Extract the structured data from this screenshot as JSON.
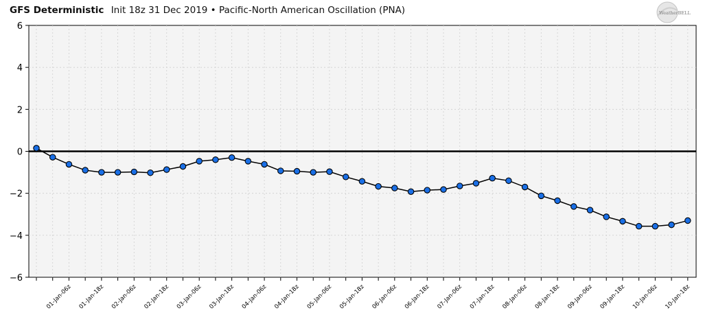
{
  "header": {
    "model": "GFS Deterministic",
    "init": "Init 18z 31 Dec 2019",
    "separator": "•",
    "index": "Pacific-North American Oscillation (PNA)"
  },
  "logo": {
    "text": "WeatherBELL"
  },
  "chart_data": {
    "type": "line",
    "title": "Pacific-North American Oscillation (PNA)",
    "xlabel": "",
    "ylabel": "",
    "ylim": [
      -6,
      6
    ],
    "yticks": [
      -6,
      -4,
      -2,
      0,
      2,
      4,
      6
    ],
    "ytick_labels": [
      "−6",
      "−4",
      "−2",
      "0",
      "2",
      "4",
      "6"
    ],
    "x": [
      "31-Dec-18z",
      "01-Jan-00z",
      "01-Jan-06z",
      "01-Jan-12z",
      "01-Jan-18z",
      "02-Jan-00z",
      "02-Jan-06z",
      "02-Jan-12z",
      "02-Jan-18z",
      "03-Jan-00z",
      "03-Jan-06z",
      "03-Jan-12z",
      "03-Jan-18z",
      "04-Jan-00z",
      "04-Jan-06z",
      "04-Jan-12z",
      "04-Jan-18z",
      "05-Jan-00z",
      "05-Jan-06z",
      "05-Jan-12z",
      "05-Jan-18z",
      "06-Jan-00z",
      "06-Jan-06z",
      "06-Jan-12z",
      "06-Jan-18z",
      "07-Jan-00z",
      "07-Jan-06z",
      "07-Jan-12z",
      "07-Jan-18z",
      "08-Jan-00z",
      "08-Jan-06z",
      "08-Jan-12z",
      "08-Jan-18z",
      "09-Jan-00z",
      "09-Jan-06z",
      "09-Jan-12z",
      "09-Jan-18z",
      "10-Jan-00z",
      "10-Jan-06z",
      "10-Jan-12z",
      "10-Jan-18z"
    ],
    "xtick_labels": [
      "01-Jan-06z",
      "01-Jan-18z",
      "02-Jan-06z",
      "02-Jan-18z",
      "03-Jan-06z",
      "03-Jan-18z",
      "04-Jan-06z",
      "04-Jan-18z",
      "05-Jan-06z",
      "05-Jan-18z",
      "06-Jan-06z",
      "06-Jan-18z",
      "07-Jan-06z",
      "07-Jan-18z",
      "08-Jan-06z",
      "08-Jan-18z",
      "09-Jan-06z",
      "09-Jan-18z",
      "10-Jan-06z",
      "10-Jan-18z"
    ],
    "series": [
      {
        "name": "PNA",
        "values": [
          0.15,
          -0.28,
          -0.62,
          -0.9,
          -1.0,
          -1.0,
          -0.98,
          -1.02,
          -0.87,
          -0.72,
          -0.47,
          -0.4,
          -0.3,
          -0.47,
          -0.62,
          -0.93,
          -0.95,
          -1.0,
          -0.97,
          -1.22,
          -1.43,
          -1.67,
          -1.75,
          -1.92,
          -1.85,
          -1.82,
          -1.65,
          -1.52,
          -1.28,
          -1.4,
          -1.7,
          -2.12,
          -2.35,
          -2.63,
          -2.8,
          -3.12,
          -3.33,
          -3.57,
          -3.57,
          -3.5,
          -3.3
        ]
      }
    ],
    "zero_line": 0,
    "grid": true,
    "marker_color": "#1a6fe6",
    "line_color": "#000000",
    "plot_background": "#f4f4f4"
  }
}
